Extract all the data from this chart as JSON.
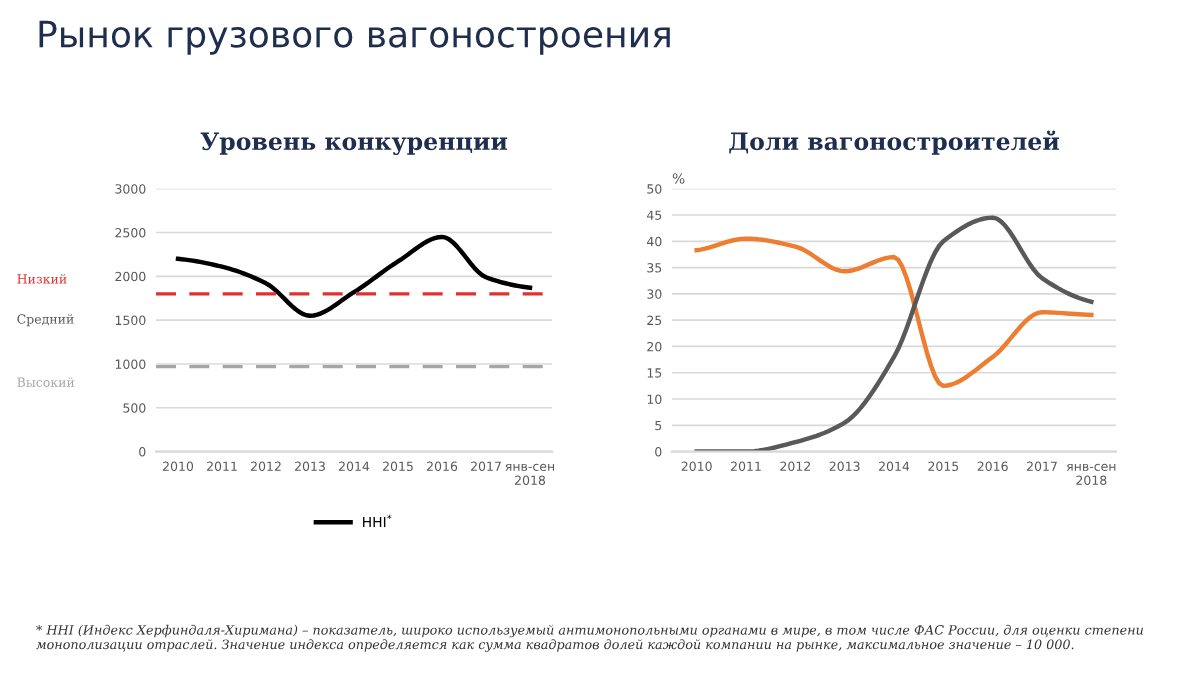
{
  "chart_data": [
    {
      "type": "line",
      "title": "Уровень конкуренции",
      "categories": [
        "2010",
        "2011",
        "2012",
        "2013",
        "2014",
        "2015",
        "2016",
        "2017",
        "янв-сен\n2018"
      ],
      "series": [
        {
          "name": "HHI$^{*}$",
          "color": "#000000",
          "values": [
            2200,
            2110,
            1920,
            1550,
            1820,
            2170,
            2450,
            1990,
            1870
          ]
        }
      ],
      "ylim": [
        0,
        3000
      ],
      "yticks": [
        0,
        500,
        1000,
        1500,
        2000,
        2500,
        3000
      ],
      "grid": "y",
      "legend": "bottom",
      "marker": "none",
      "line_style": "solid",
      "ref_lines": [
        {
          "axis": "y",
          "value": 1800,
          "label": "Низкий",
          "color": "#e03030",
          "line_style": "dashed"
        },
        {
          "axis": "y",
          "value": 970,
          "label": "Высокий",
          "color": "#a6a6a6",
          "line_style": "dashed"
        }
      ],
      "annotations": [
        "Рынок грузового вагоностроения",
        "Средний"
      ]
    },
    {
      "type": "line",
      "title": "Доли вагоностроителей",
      "ylabel": "%",
      "categories": [
        "2010",
        "2011",
        "2012",
        "2013",
        "2014",
        "2015",
        "2016",
        "2017",
        "янв-сен\n2018"
      ],
      "series": [
        {
          "color": "#ed7d31",
          "values": [
            38.3,
            40.5,
            39,
            34.3,
            37,
            12.5,
            18,
            26.5,
            26
          ]
        },
        {
          "color": "#595959",
          "values": [
            0,
            0,
            1.8,
            5.5,
            18,
            40,
            44.5,
            33,
            28.5
          ]
        }
      ],
      "ylim": [
        0,
        50
      ],
      "yticks": [
        0,
        5,
        10,
        15,
        20,
        25,
        30,
        35,
        40,
        45,
        50
      ],
      "grid": "y",
      "marker": "none",
      "line_style": "solid",
      "annotations": [
        "* HHI (Индекс Херфиндаля-Хиримана) – показатель, широко используемый антимонопольными органами в мире, в том числе ФАС России, для оценки степени монополизации отраслей. Значение индекса определяется как сумма квадратов долей каждой компании на рынке, максимальное значение – 10 000."
      ]
    }
  ]
}
